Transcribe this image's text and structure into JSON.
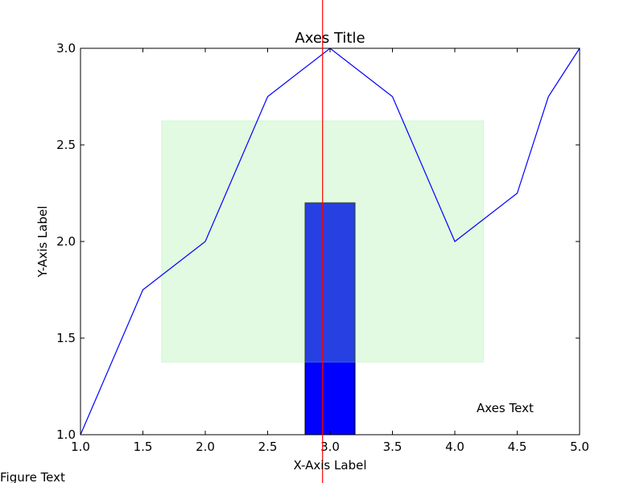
{
  "figure_text": "Figure Text",
  "chart_data": {
    "type": "line",
    "title": "Axes Title",
    "xlabel": "X-Axis Label",
    "ylabel": "Y-Axis Label",
    "xlim": [
      1.0,
      5.0
    ],
    "ylim": [
      1.0,
      3.0
    ],
    "xticks": [
      1.0,
      1.5,
      2.0,
      2.5,
      3.0,
      3.5,
      4.0,
      4.5,
      5.0
    ],
    "xtick_labels": [
      "1.0",
      "1.5",
      "2.0",
      "2.5",
      "3.0",
      "3.5",
      "4.0",
      "4.5",
      "5.0"
    ],
    "yticks": [
      1.0,
      1.5,
      2.0,
      2.5,
      3.0
    ],
    "ytick_labels": [
      "1.0",
      "1.5",
      "2.0",
      "2.5",
      "3.0"
    ],
    "grid": false,
    "series": [
      {
        "x": [
          1.0,
          1.5,
          2.0,
          2.5,
          3.0,
          3.5,
          4.0,
          4.5,
          4.75,
          5.0
        ],
        "y": [
          1.0,
          1.75,
          2.0,
          2.75,
          3.0,
          2.75,
          2.0,
          2.25,
          2.75,
          3.0
        ],
        "color": "#0000ff"
      }
    ],
    "bar": {
      "x": 3.0,
      "width": 0.4,
      "bottom": 1.0,
      "height": 1.2,
      "color": "#0000ff"
    },
    "shaded_region": {
      "x": [
        1.65,
        4.23
      ],
      "y": [
        1.375,
        2.625
      ],
      "color": "#90ee90",
      "alpha": 0.27
    },
    "vline": {
      "x": 2.94,
      "color": "#ff0000"
    },
    "annotation": {
      "text": "Axes Text",
      "x": 4.2,
      "y": 1.1
    }
  }
}
